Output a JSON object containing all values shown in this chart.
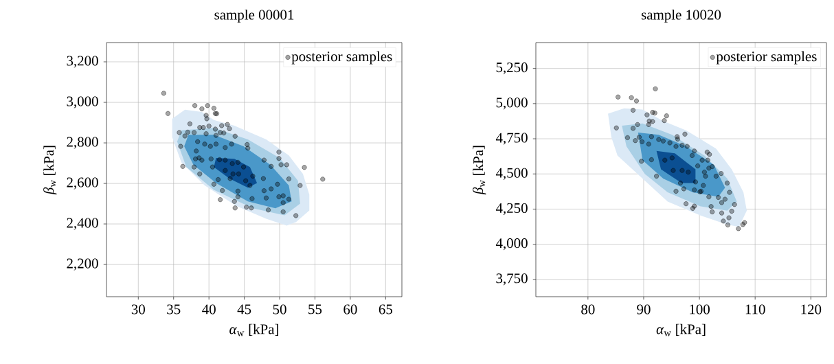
{
  "chart_data": [
    {
      "type": "scatter",
      "title": "sample 00001",
      "xlabel": "*α*$_{w}$ [kPa]",
      "ylabel": "*β*$_{w}$ [kPa]",
      "xlim": [
        25.5,
        67.3
      ],
      "ylim": [
        2041,
        3295
      ],
      "xticks": [
        30,
        35,
        40,
        45,
        50,
        55,
        60,
        65
      ],
      "yticks": [
        {
          "value": 2200,
          "label": "2,200"
        },
        {
          "value": 2400,
          "label": "2,400"
        },
        {
          "value": 2600,
          "label": "2,600"
        },
        {
          "value": 2800,
          "label": "2,800"
        },
        {
          "value": 3000,
          "label": "3,000"
        },
        {
          "value": 3200,
          "label": "3,200"
        }
      ],
      "grid": true,
      "legend": "top right",
      "series": [
        {
          "type": "area",
          "color": "#dbe9f6",
          "x": [
            34.8,
            36.6,
            39.0,
            40.7,
            43.6,
            48.1,
            51.3,
            53.3,
            54.2,
            54.2,
            52.3,
            51.0,
            48.1,
            43.9,
            39.4,
            36.1,
            34.8
          ],
          "values": [
            2919,
            2964,
            2953,
            2913,
            2885,
            2817,
            2738,
            2647,
            2545,
            2466,
            2409,
            2392,
            2426,
            2488,
            2590,
            2704,
            2828
          ]
        },
        {
          "type": "area",
          "color": "#a9cfe5",
          "x": [
            36.1,
            40.7,
            45.5,
            50.0,
            52.6,
            52.9,
            50.7,
            46.2,
            40.7,
            36.8,
            35.5
          ],
          "values": [
            2862,
            2874,
            2817,
            2726,
            2613,
            2500,
            2443,
            2477,
            2568,
            2681,
            2806
          ]
        },
        {
          "type": "area",
          "color": "#4a98c9",
          "x": [
            37.1,
            40.7,
            44.9,
            48.7,
            51.3,
            51.7,
            49.4,
            45.5,
            41.0,
            37.8,
            36.5
          ],
          "values": [
            2840,
            2840,
            2783,
            2692,
            2590,
            2511,
            2477,
            2511,
            2602,
            2692,
            2783
          ]
        },
        {
          "type": "area",
          "color": "#0b4f92",
          "x": [
            41.0,
            43.6,
            45.8,
            46.8,
            45.5,
            42.9,
            40.7
          ],
          "values": [
            2726,
            2721,
            2681,
            2602,
            2579,
            2624,
            2681
          ]
        },
        {
          "type": "scatter",
          "name": "posterior samples",
          "color": "#000000",
          "marker": "circle",
          "x": [
            33.6,
            34.2,
            38.0,
            39.0,
            39.8,
            40.7,
            40.9,
            39.6,
            39.7,
            41.1,
            37.3,
            35.8,
            36.6,
            37.0,
            37.9,
            38.7,
            39.2,
            40.0,
            40.9,
            41.8,
            42.6,
            42.9,
            42.1,
            41.6,
            43.7,
            36.0,
            38.2,
            39.4,
            39.6,
            41.0,
            41.0,
            42.3,
            43.2,
            45.4,
            45.5,
            38.6,
            40.3,
            41.5,
            42.3,
            43.3,
            44.1,
            44.9,
            44.2,
            43.4,
            42.3,
            40.5,
            38.7,
            36.3,
            37.9,
            41.3,
            40.7,
            41.9,
            41.6,
            43.6,
            44.1,
            43.7,
            45.3,
            46.0,
            46.1,
            45.2,
            45.8,
            46.2,
            47.8,
            48.8,
            49.9,
            49.9,
            50.2,
            51.0,
            53.5,
            56.1,
            47.7,
            47.8,
            48.1,
            48.8,
            49.7,
            49.9,
            50.5,
            50.5,
            51.3,
            51.3,
            52.9,
            52.3,
            50.5,
            48.4,
            44.1,
            43.0,
            40.2,
            39.0,
            38.1,
            38.4
          ],
          "values": [
            3045,
            2945,
            2984,
            2968,
            2984,
            2971,
            2945,
            2936,
            2919,
            2944,
            2894,
            2851,
            2834,
            2853,
            2851,
            2876,
            2876,
            2883,
            2868,
            2885,
            2891,
            2870,
            2849,
            2851,
            2833,
            2783,
            2760,
            2794,
            2845,
            2837,
            2794,
            2777,
            2794,
            2792,
            2774,
            2726,
            2721,
            2717,
            2715,
            2698,
            2704,
            2681,
            2647,
            2647,
            2664,
            2681,
            2647,
            2684,
            2681,
            2619,
            2596,
            2565,
            2520,
            2511,
            2534,
            2479,
            2483,
            2479,
            2525,
            2613,
            2590,
            2636,
            2715,
            2684,
            2755,
            2723,
            2692,
            2692,
            2679,
            2621,
            2624,
            2564,
            2528,
            2573,
            2596,
            2534,
            2539,
            2505,
            2522,
            2622,
            2590,
            2441,
            2460,
            2469,
            2562,
            2624,
            2783,
            2715,
            2721,
            2806
          ]
        }
      ]
    },
    {
      "type": "scatter",
      "title": "sample 10020",
      "xlabel": "*α*$_{w}$ [kPa]",
      "ylabel": "*β*$_{w}$ [kPa]",
      "xlim": [
        70.65,
        122.8
      ],
      "ylim": [
        3627,
        5434
      ],
      "xticks": [
        80,
        90,
        100,
        110,
        120
      ],
      "yticks": [
        {
          "value": 3750,
          "label": "3,750"
        },
        {
          "value": 4000,
          "label": "4,000"
        },
        {
          "value": 4250,
          "label": "4,250"
        },
        {
          "value": 4500,
          "label": "4,500"
        },
        {
          "value": 4750,
          "label": "4,750"
        },
        {
          "value": 5000,
          "label": "5,000"
        },
        {
          "value": 5250,
          "label": "5,250"
        }
      ],
      "grid": true,
      "legend": "top right",
      "series": [
        {
          "type": "area",
          "color": "#dbe9f6",
          "x": [
            83.6,
            86.5,
            89.8,
            93.5,
            97.6,
            103.0,
            105.8,
            107.9,
            108.5,
            107.1,
            105.0,
            100.1,
            94.3,
            89.8,
            85.3,
            84.2
          ],
          "values": [
            4928,
            4966,
            4958,
            4876,
            4810,
            4680,
            4533,
            4369,
            4239,
            4124,
            4140,
            4206,
            4304,
            4467,
            4631,
            4761
          ]
        },
        {
          "type": "area",
          "color": "#a9cfe5",
          "x": [
            86.1,
            89.8,
            95.1,
            100.9,
            105.0,
            106.7,
            105.0,
            100.1,
            94.3,
            90.2,
            86.9
          ],
          "values": [
            4843,
            4859,
            4778,
            4631,
            4467,
            4304,
            4239,
            4271,
            4369,
            4500,
            4696
          ]
        },
        {
          "type": "area",
          "color": "#4a98c9",
          "x": [
            89.0,
            92.7,
            97.6,
            102.6,
            104.6,
            103.4,
            98.8,
            93.5,
            89.8
          ],
          "values": [
            4794,
            4778,
            4696,
            4565,
            4402,
            4337,
            4369,
            4467,
            4598
          ]
        },
        {
          "type": "area",
          "color": "#0b4f92",
          "x": [
            92.3,
            95.6,
            99.3,
            99.3,
            96.8,
            93.1
          ],
          "values": [
            4663,
            4647,
            4533,
            4435,
            4435,
            4533
          ]
        },
        {
          "type": "scatter",
          "name": "posterior samples",
          "color": "#000000",
          "marker": "circle",
          "x": [
            85.4,
            87.8,
            88.7,
            92.1,
            88.1,
            90.6,
            91.6,
            92.0,
            94.1,
            93.7,
            91.0,
            91.6,
            90.9,
            85.1,
            88.1,
            88.9,
            87.1,
            88.5,
            89.2,
            89.7,
            90.9,
            91.4,
            92.7,
            93.5,
            94.7,
            96.0,
            96.1,
            97.4,
            96.9,
            95.8,
            97.8,
            99.1,
            98.7,
            101.4,
            101.8,
            91.4,
            89.6,
            92.3,
            93.8,
            95.1,
            95.3,
            96.9,
            98.0,
            96.6,
            95.8,
            97.2,
            99.3,
            99.1,
            100.1,
            100.7,
            101.1,
            101.7,
            100.9,
            102.3,
            101.5,
            103.0,
            103.9,
            105.0,
            105.4,
            104.6,
            104.0,
            103.4,
            101.7,
            100.3,
            97.6,
            99.1,
            98.8,
            102.1,
            102.3,
            104.0,
            105.8,
            105.3,
            104.3,
            105.1,
            107.0,
            107.8,
            108.1,
            106.3,
            99.7,
            100.5
          ],
          "values": [
            5047,
            5042,
            5019,
            5105,
            4953,
            4920,
            4938,
            4933,
            4913,
            4879,
            4876,
            4873,
            4851,
            4827,
            4824,
            4851,
            4758,
            4737,
            4761,
            4729,
            4712,
            4765,
            4745,
            4734,
            4721,
            4765,
            4748,
            4783,
            4704,
            4696,
            4696,
            4663,
            4631,
            4655,
            4639,
            4601,
            4590,
            4484,
            4598,
            4614,
            4525,
            4525,
            4513,
            4435,
            4377,
            4394,
            4443,
            4386,
            4373,
            4418,
            4484,
            4541,
            4513,
            4552,
            4598,
            4484,
            4503,
            4435,
            4369,
            4320,
            4296,
            4333,
            4337,
            4377,
            4288,
            4271,
            4255,
            4268,
            4230,
            4222,
            4235,
            4188,
            4165,
            4137,
            4111,
            4140,
            4154,
            4283,
            4557,
            4598
          ]
        }
      ]
    }
  ]
}
